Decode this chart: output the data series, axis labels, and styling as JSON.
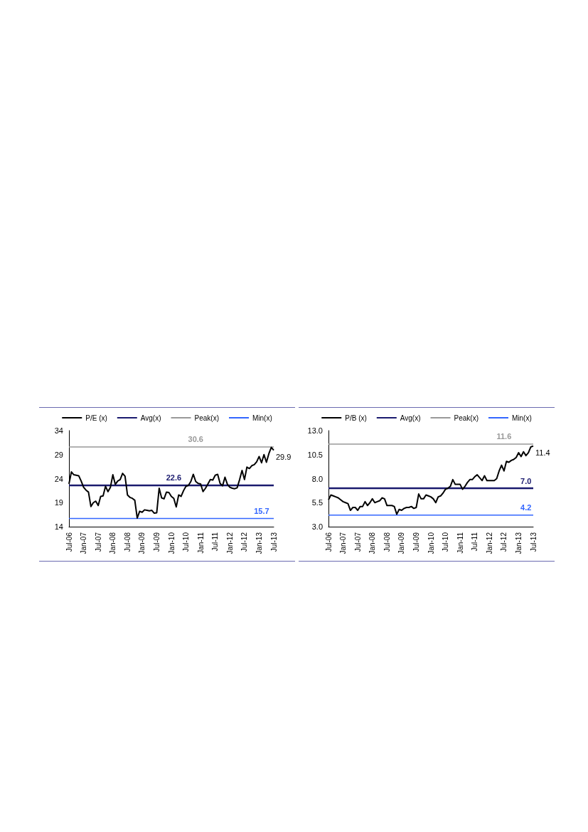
{
  "chart_data": [
    {
      "type": "line",
      "categories": [
        "Jul-06",
        null,
        null,
        null,
        null,
        null,
        "Jan-07",
        null,
        null,
        null,
        null,
        null,
        "Jul-07",
        null,
        null,
        null,
        null,
        null,
        "Jan-08",
        null,
        null,
        null,
        null,
        null,
        "Jul-08",
        null,
        null,
        null,
        null,
        null,
        "Jan-09",
        null,
        null,
        null,
        null,
        null,
        "Jul-09",
        null,
        null,
        null,
        null,
        null,
        "Jan-10",
        null,
        null,
        null,
        null,
        null,
        "Jul-10",
        null,
        null,
        null,
        null,
        null,
        "Jan-11",
        null,
        null,
        null,
        null,
        null,
        "Jul-11",
        null,
        null,
        null,
        null,
        null,
        "Jan-12",
        null,
        null,
        null,
        null,
        null,
        "Jul-12",
        null,
        null,
        null,
        null,
        null,
        "Jan-13",
        null,
        null,
        null,
        null,
        null,
        "Jul-13"
      ],
      "ylim": [
        14,
        34
      ],
      "yticks": [
        14,
        19,
        24,
        29,
        34
      ],
      "grid": false,
      "legend": "top",
      "marker": "none",
      "series": [
        {
          "name": "P/E (x)",
          "color": "#000000",
          "values": [
            22.9,
            25.4,
            24.8,
            24.7,
            24.6,
            23.5,
            22.2,
            21.6,
            21.2,
            18.2,
            19.0,
            19.3,
            18.4,
            20.3,
            20.4,
            22.4,
            21.3,
            22.2,
            24.8,
            22.8,
            23.5,
            23.8,
            25.1,
            24.5,
            20.6,
            20.1,
            19.9,
            19.5,
            15.8,
            17.2,
            17.0,
            17.5,
            17.4,
            17.3,
            17.4,
            16.8,
            16.9,
            22.0,
            20.0,
            19.8,
            21.2,
            21.1,
            20.3,
            19.9,
            18.1,
            20.6,
            20.3,
            21.5,
            22.4,
            22.6,
            23.4,
            24.9,
            23.4,
            23.0,
            22.9,
            21.3,
            22.0,
            22.9,
            23.8,
            23.7,
            24.7,
            24.9,
            23.0,
            22.5,
            24.3,
            22.8,
            22.2,
            22.0,
            21.9,
            22.1,
            23.8,
            25.7,
            23.8,
            26.4,
            26.1,
            26.7,
            26.9,
            27.5,
            28.6,
            27.3,
            29.0,
            27.4,
            29.2,
            30.5,
            29.9
          ],
          "value_labels": [
            null,
            null,
            null,
            null,
            null,
            null,
            null,
            null,
            null,
            null,
            null,
            null,
            null,
            null,
            null,
            null,
            null,
            null,
            null,
            null,
            null,
            null,
            null,
            null,
            null,
            null,
            null,
            null,
            null,
            null,
            null,
            null,
            null,
            null,
            null,
            null,
            null,
            null,
            null,
            null,
            null,
            null,
            null,
            null,
            null,
            null,
            null,
            null,
            null,
            null,
            null,
            null,
            null,
            null,
            null,
            null,
            null,
            null,
            null,
            null,
            null,
            null,
            null,
            null,
            null,
            null,
            null,
            null,
            null,
            null,
            null,
            null,
            null,
            null,
            null,
            null,
            null,
            null,
            null,
            null,
            null,
            null,
            null,
            null,
            "29.9"
          ]
        },
        {
          "name": "Avg(x)",
          "color": "#1a1a6e",
          "values": [
            22.6,
            22.6,
            22.6,
            22.6,
            22.6,
            22.6,
            22.6,
            22.6,
            22.6,
            22.6,
            22.6,
            22.6,
            22.6,
            22.6,
            22.6,
            22.6,
            22.6,
            22.6,
            22.6,
            22.6,
            22.6,
            22.6,
            22.6,
            22.6,
            22.6,
            22.6,
            22.6,
            22.6,
            22.6,
            22.6,
            22.6,
            22.6,
            22.6,
            22.6,
            22.6,
            22.6,
            22.6,
            22.6,
            22.6,
            22.6,
            22.6,
            22.6,
            22.6,
            22.6,
            22.6,
            22.6,
            22.6,
            22.6,
            22.6,
            22.6,
            22.6,
            22.6,
            22.6,
            22.6,
            22.6,
            22.6,
            22.6,
            22.6,
            22.6,
            22.6,
            22.6,
            22.6,
            22.6,
            22.6,
            22.6,
            22.6,
            22.6,
            22.6,
            22.6,
            22.6,
            22.6,
            22.6,
            22.6,
            22.6,
            22.6,
            22.6,
            22.6,
            22.6,
            22.6,
            22.6,
            22.6,
            22.6,
            22.6,
            22.6,
            22.6
          ],
          "value_labels": [
            null,
            null,
            null,
            null,
            null,
            null,
            null,
            null,
            null,
            null,
            null,
            null,
            null,
            null,
            null,
            null,
            null,
            null,
            null,
            null,
            null,
            null,
            null,
            null,
            null,
            null,
            null,
            null,
            null,
            null,
            null,
            null,
            null,
            null,
            null,
            null,
            null,
            null,
            null,
            null,
            null,
            null,
            null,
            "22.6",
            null,
            null,
            null,
            null,
            null,
            null,
            null,
            null,
            null,
            null,
            null,
            null,
            null,
            null,
            null,
            null,
            null,
            null,
            null,
            null,
            null,
            null,
            null,
            null,
            null,
            null,
            null,
            null,
            null,
            null,
            null,
            null,
            null,
            null,
            null,
            null,
            null,
            null,
            null,
            null,
            null
          ]
        },
        {
          "name": "Peak(x)",
          "color": "#999999",
          "values": [
            30.6,
            30.6,
            30.6,
            30.6,
            30.6,
            30.6,
            30.6,
            30.6,
            30.6,
            30.6,
            30.6,
            30.6,
            30.6,
            30.6,
            30.6,
            30.6,
            30.6,
            30.6,
            30.6,
            30.6,
            30.6,
            30.6,
            30.6,
            30.6,
            30.6,
            30.6,
            30.6,
            30.6,
            30.6,
            30.6,
            30.6,
            30.6,
            30.6,
            30.6,
            30.6,
            30.6,
            30.6,
            30.6,
            30.6,
            30.6,
            30.6,
            30.6,
            30.6,
            30.6,
            30.6,
            30.6,
            30.6,
            30.6,
            30.6,
            30.6,
            30.6,
            30.6,
            30.6,
            30.6,
            30.6,
            30.6,
            30.6,
            30.6,
            30.6,
            30.6,
            30.6,
            30.6,
            30.6,
            30.6,
            30.6,
            30.6,
            30.6,
            30.6,
            30.6,
            30.6,
            30.6,
            30.6,
            30.6,
            30.6,
            30.6,
            30.6,
            30.6,
            30.6,
            30.6,
            30.6,
            30.6,
            30.6,
            30.6,
            30.6,
            30.6
          ],
          "value_labels": [
            null,
            null,
            null,
            null,
            null,
            null,
            null,
            null,
            null,
            null,
            null,
            null,
            null,
            null,
            null,
            null,
            null,
            null,
            null,
            null,
            null,
            null,
            null,
            null,
            null,
            null,
            null,
            null,
            null,
            null,
            null,
            null,
            null,
            null,
            null,
            null,
            null,
            null,
            null,
            null,
            null,
            null,
            null,
            null,
            null,
            null,
            null,
            null,
            null,
            null,
            null,
            null,
            "30.6",
            null,
            null,
            null,
            null,
            null,
            null,
            null,
            null,
            null,
            null,
            null,
            null,
            null,
            null,
            null,
            null,
            null,
            null,
            null,
            null,
            null,
            null,
            null,
            null,
            null,
            null,
            null,
            null,
            null,
            null,
            null,
            null
          ]
        },
        {
          "name": "Min(x)",
          "color": "#3366ff",
          "values": [
            15.7,
            15.7,
            15.7,
            15.7,
            15.7,
            15.7,
            15.7,
            15.7,
            15.7,
            15.7,
            15.7,
            15.7,
            15.7,
            15.7,
            15.7,
            15.7,
            15.7,
            15.7,
            15.7,
            15.7,
            15.7,
            15.7,
            15.7,
            15.7,
            15.7,
            15.7,
            15.7,
            15.7,
            15.7,
            15.7,
            15.7,
            15.7,
            15.7,
            15.7,
            15.7,
            15.7,
            15.7,
            15.7,
            15.7,
            15.7,
            15.7,
            15.7,
            15.7,
            15.7,
            15.7,
            15.7,
            15.7,
            15.7,
            15.7,
            15.7,
            15.7,
            15.7,
            15.7,
            15.7,
            15.7,
            15.7,
            15.7,
            15.7,
            15.7,
            15.7,
            15.7,
            15.7,
            15.7,
            15.7,
            15.7,
            15.7,
            15.7,
            15.7,
            15.7,
            15.7,
            15.7,
            15.7,
            15.7,
            15.7,
            15.7,
            15.7,
            15.7,
            15.7,
            15.7,
            15.7,
            15.7,
            15.7,
            15.7,
            15.7,
            15.7
          ],
          "value_labels": [
            null,
            null,
            null,
            null,
            null,
            null,
            null,
            null,
            null,
            null,
            null,
            null,
            null,
            null,
            null,
            null,
            null,
            null,
            null,
            null,
            null,
            null,
            null,
            null,
            null,
            null,
            null,
            null,
            null,
            null,
            null,
            null,
            null,
            null,
            null,
            null,
            null,
            null,
            null,
            null,
            null,
            null,
            null,
            null,
            null,
            null,
            null,
            null,
            null,
            null,
            null,
            null,
            null,
            null,
            null,
            null,
            null,
            null,
            null,
            null,
            null,
            null,
            null,
            null,
            null,
            null,
            null,
            null,
            null,
            null,
            null,
            null,
            null,
            null,
            null,
            null,
            null,
            null,
            null,
            "15.7",
            null,
            null,
            null,
            null,
            null
          ]
        }
      ]
    },
    {
      "type": "line",
      "categories": [
        "Jul-06",
        null,
        null,
        null,
        null,
        null,
        "Jan-07",
        null,
        null,
        null,
        null,
        null,
        "Jul-07",
        null,
        null,
        null,
        null,
        null,
        "Jan-08",
        null,
        null,
        null,
        null,
        null,
        "Jul-08",
        null,
        null,
        null,
        null,
        null,
        "Jan-09",
        null,
        null,
        null,
        null,
        null,
        "Jul-09",
        null,
        null,
        null,
        null,
        null,
        "Jan-10",
        null,
        null,
        null,
        null,
        null,
        "Jul-10",
        null,
        null,
        null,
        null,
        null,
        "Jan-11",
        null,
        null,
        null,
        null,
        null,
        "Jul-11",
        null,
        null,
        null,
        null,
        null,
        "Jan-12",
        null,
        null,
        null,
        null,
        null,
        "Jul-12",
        null,
        null,
        null,
        null,
        null,
        "Jan-13",
        null,
        null,
        null,
        null,
        null,
        "Jul-13"
      ],
      "ylim": [
        3,
        13
      ],
      "yticks": [
        {
          "value": 3,
          "label": "3.0"
        },
        5.5,
        {
          "value": 8,
          "label": "8.0"
        },
        10.5,
        {
          "value": 13,
          "label": "13.0"
        }
      ],
      "grid": false,
      "legend": "top",
      "marker": "none",
      "series": [
        {
          "name": "P/B (x)",
          "color": "#000000",
          "values": [
            5.8,
            6.3,
            6.2,
            6.1,
            6.0,
            5.8,
            5.6,
            5.5,
            5.4,
            4.7,
            5.0,
            5.0,
            4.7,
            5.1,
            5.1,
            5.6,
            5.2,
            5.5,
            5.9,
            5.5,
            5.6,
            5.7,
            6.0,
            5.9,
            5.2,
            5.2,
            5.2,
            5.1,
            4.3,
            4.8,
            4.7,
            4.9,
            5.0,
            5.0,
            5.1,
            4.9,
            5.0,
            6.4,
            5.9,
            5.9,
            6.3,
            6.2,
            6.1,
            5.9,
            5.5,
            6.1,
            6.2,
            6.5,
            6.9,
            7.0,
            7.2,
            7.9,
            7.4,
            7.4,
            7.4,
            6.9,
            7.2,
            7.6,
            7.9,
            7.9,
            8.2,
            8.4,
            8.1,
            7.8,
            8.3,
            7.8,
            7.8,
            7.8,
            7.8,
            8.0,
            8.8,
            9.4,
            8.8,
            9.8,
            9.7,
            9.9,
            10.0,
            10.2,
            10.7,
            10.3,
            10.8,
            10.4,
            10.7,
            11.3,
            11.4
          ],
          "value_labels": [
            null,
            null,
            null,
            null,
            null,
            null,
            null,
            null,
            null,
            null,
            null,
            null,
            null,
            null,
            null,
            null,
            null,
            null,
            null,
            null,
            null,
            null,
            null,
            null,
            null,
            null,
            null,
            null,
            null,
            null,
            null,
            null,
            null,
            null,
            null,
            null,
            null,
            null,
            null,
            null,
            null,
            null,
            null,
            null,
            null,
            null,
            null,
            null,
            null,
            null,
            null,
            null,
            null,
            null,
            null,
            null,
            null,
            null,
            null,
            null,
            null,
            null,
            null,
            null,
            null,
            null,
            null,
            null,
            null,
            null,
            null,
            null,
            null,
            null,
            null,
            null,
            null,
            null,
            null,
            null,
            null,
            null,
            null,
            null,
            "11.4"
          ]
        },
        {
          "name": "Avg(x)",
          "color": "#1a1a6e",
          "values": [
            7.0,
            7.0,
            7.0,
            7.0,
            7.0,
            7.0,
            7.0,
            7.0,
            7.0,
            7.0,
            7.0,
            7.0,
            7.0,
            7.0,
            7.0,
            7.0,
            7.0,
            7.0,
            7.0,
            7.0,
            7.0,
            7.0,
            7.0,
            7.0,
            7.0,
            7.0,
            7.0,
            7.0,
            7.0,
            7.0,
            7.0,
            7.0,
            7.0,
            7.0,
            7.0,
            7.0,
            7.0,
            7.0,
            7.0,
            7.0,
            7.0,
            7.0,
            7.0,
            7.0,
            7.0,
            7.0,
            7.0,
            7.0,
            7.0,
            7.0,
            7.0,
            7.0,
            7.0,
            7.0,
            7.0,
            7.0,
            7.0,
            7.0,
            7.0,
            7.0,
            7.0,
            7.0,
            7.0,
            7.0,
            7.0,
            7.0,
            7.0,
            7.0,
            7.0,
            7.0,
            7.0,
            7.0,
            7.0,
            7.0,
            7.0,
            7.0,
            7.0,
            7.0,
            7.0,
            7.0,
            7.0,
            7.0,
            7.0,
            7.0,
            7.0
          ],
          "value_labels": [
            null,
            null,
            null,
            null,
            null,
            null,
            null,
            null,
            null,
            null,
            null,
            null,
            null,
            null,
            null,
            null,
            null,
            null,
            null,
            null,
            null,
            null,
            null,
            null,
            null,
            null,
            null,
            null,
            null,
            null,
            null,
            null,
            null,
            null,
            null,
            null,
            null,
            null,
            null,
            null,
            null,
            null,
            null,
            null,
            null,
            null,
            null,
            null,
            null,
            null,
            null,
            null,
            null,
            null,
            null,
            null,
            null,
            null,
            null,
            null,
            null,
            null,
            null,
            null,
            null,
            null,
            null,
            null,
            null,
            null,
            null,
            null,
            null,
            null,
            null,
            null,
            null,
            null,
            null,
            null,
            null,
            "7.0",
            null,
            null,
            null
          ]
        },
        {
          "name": "Peak(x)",
          "color": "#999999",
          "values": [
            11.6,
            11.6,
            11.6,
            11.6,
            11.6,
            11.6,
            11.6,
            11.6,
            11.6,
            11.6,
            11.6,
            11.6,
            11.6,
            11.6,
            11.6,
            11.6,
            11.6,
            11.6,
            11.6,
            11.6,
            11.6,
            11.6,
            11.6,
            11.6,
            11.6,
            11.6,
            11.6,
            11.6,
            11.6,
            11.6,
            11.6,
            11.6,
            11.6,
            11.6,
            11.6,
            11.6,
            11.6,
            11.6,
            11.6,
            11.6,
            11.6,
            11.6,
            11.6,
            11.6,
            11.6,
            11.6,
            11.6,
            11.6,
            11.6,
            11.6,
            11.6,
            11.6,
            11.6,
            11.6,
            11.6,
            11.6,
            11.6,
            11.6,
            11.6,
            11.6,
            11.6,
            11.6,
            11.6,
            11.6,
            11.6,
            11.6,
            11.6,
            11.6,
            11.6,
            11.6,
            11.6,
            11.6,
            11.6,
            11.6,
            11.6,
            11.6,
            11.6,
            11.6,
            11.6,
            11.6,
            11.6,
            11.6,
            11.6,
            11.6,
            11.6
          ],
          "value_labels": [
            null,
            null,
            null,
            null,
            null,
            null,
            null,
            null,
            null,
            null,
            null,
            null,
            null,
            null,
            null,
            null,
            null,
            null,
            null,
            null,
            null,
            null,
            null,
            null,
            null,
            null,
            null,
            null,
            null,
            null,
            null,
            null,
            null,
            null,
            null,
            null,
            null,
            null,
            null,
            null,
            null,
            null,
            null,
            null,
            null,
            null,
            null,
            null,
            null,
            null,
            null,
            null,
            null,
            null,
            null,
            null,
            null,
            null,
            null,
            null,
            null,
            null,
            null,
            null,
            null,
            null,
            null,
            null,
            null,
            null,
            null,
            null,
            "11.6",
            null,
            null,
            null,
            null,
            null,
            null,
            null,
            null,
            null,
            null,
            null,
            null
          ]
        },
        {
          "name": "Min(x)",
          "color": "#3366ff",
          "values": [
            4.2,
            4.2,
            4.2,
            4.2,
            4.2,
            4.2,
            4.2,
            4.2,
            4.2,
            4.2,
            4.2,
            4.2,
            4.2,
            4.2,
            4.2,
            4.2,
            4.2,
            4.2,
            4.2,
            4.2,
            4.2,
            4.2,
            4.2,
            4.2,
            4.2,
            4.2,
            4.2,
            4.2,
            4.2,
            4.2,
            4.2,
            4.2,
            4.2,
            4.2,
            4.2,
            4.2,
            4.2,
            4.2,
            4.2,
            4.2,
            4.2,
            4.2,
            4.2,
            4.2,
            4.2,
            4.2,
            4.2,
            4.2,
            4.2,
            4.2,
            4.2,
            4.2,
            4.2,
            4.2,
            4.2,
            4.2,
            4.2,
            4.2,
            4.2,
            4.2,
            4.2,
            4.2,
            4.2,
            4.2,
            4.2,
            4.2,
            4.2,
            4.2,
            4.2,
            4.2,
            4.2,
            4.2,
            4.2,
            4.2,
            4.2,
            4.2,
            4.2,
            4.2,
            4.2,
            4.2,
            4.2,
            4.2,
            4.2,
            4.2,
            4.2
          ],
          "value_labels": [
            null,
            null,
            null,
            null,
            null,
            null,
            null,
            null,
            null,
            null,
            null,
            null,
            null,
            null,
            null,
            null,
            null,
            null,
            null,
            null,
            null,
            null,
            null,
            null,
            null,
            null,
            null,
            null,
            null,
            null,
            null,
            null,
            null,
            null,
            null,
            null,
            null,
            null,
            null,
            null,
            null,
            null,
            null,
            null,
            null,
            null,
            null,
            null,
            null,
            null,
            null,
            null,
            null,
            null,
            null,
            null,
            null,
            null,
            null,
            null,
            null,
            null,
            null,
            null,
            null,
            null,
            null,
            null,
            null,
            null,
            null,
            null,
            null,
            null,
            null,
            null,
            null,
            null,
            null,
            null,
            null,
            "4.2",
            null,
            null,
            null
          ]
        }
      ]
    }
  ]
}
